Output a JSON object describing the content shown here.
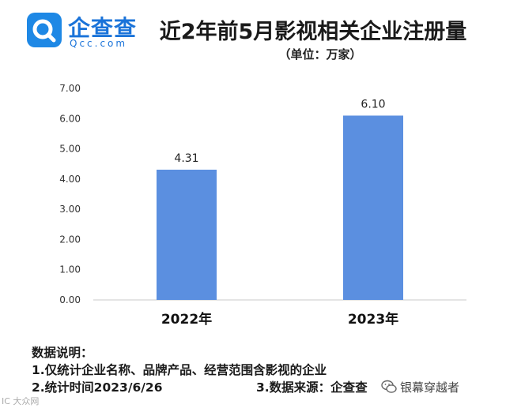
{
  "logo": {
    "cn": "企查查",
    "en": "Qcc.com"
  },
  "chart_data": {
    "type": "bar",
    "title": "近2年前5月影视相关企业注册量",
    "subtitle": "（单位：万家）",
    "categories": [
      "2022年",
      "2023年"
    ],
    "values": [
      4.31,
      6.1
    ],
    "value_labels": [
      "4.31",
      "6.10"
    ],
    "yticks": [
      "0.00",
      "1.00",
      "2.00",
      "3.00",
      "4.00",
      "5.00",
      "6.00",
      "7.00"
    ],
    "ylim": [
      0,
      7
    ],
    "grid": false,
    "bar_color": "#5b8fe0"
  },
  "notes": {
    "heading": "数据说明：",
    "line1": "1.仅统计企业名称、品牌产品、经营范围含影视的企业",
    "line2a": "2.统计时间2023/6/26",
    "line2b": "3.数据来源：企查查"
  },
  "watermark": "银幕穿越者",
  "corner_mark": "IC 大众网"
}
